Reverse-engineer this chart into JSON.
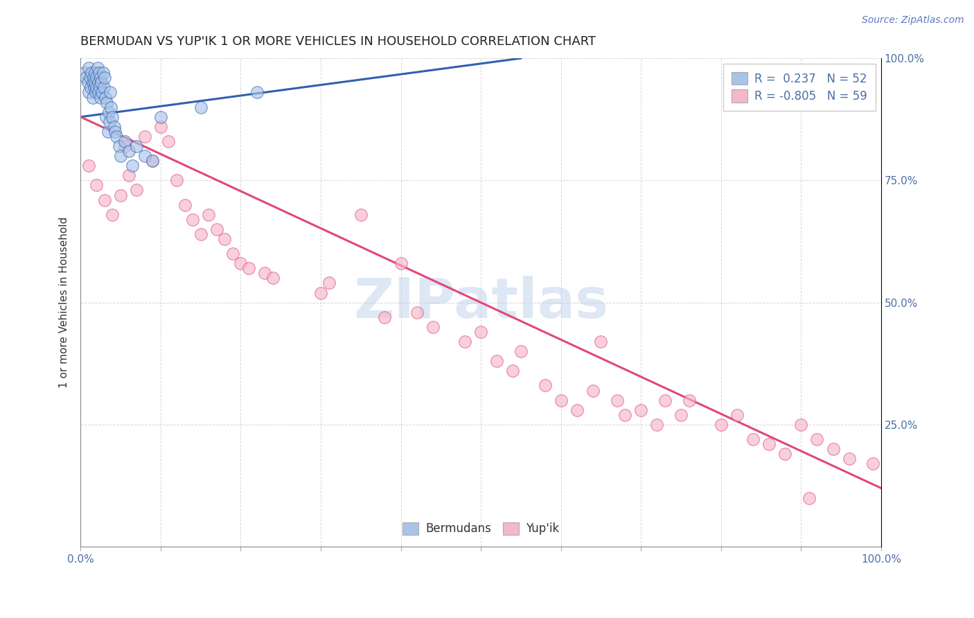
{
  "title": "BERMUDAN VS YUP'IK 1 OR MORE VEHICLES IN HOUSEHOLD CORRELATION CHART",
  "source_text": "Source: ZipAtlas.com",
  "ylabel": "1 or more Vehicles in Household",
  "xlim": [
    0.0,
    1.0
  ],
  "ylim": [
    0.0,
    1.0
  ],
  "blue_R": 0.237,
  "blue_N": 52,
  "pink_R": -0.805,
  "pink_N": 59,
  "blue_color": "#aac4e8",
  "pink_color": "#f5b8c8",
  "blue_line_color": "#3060b0",
  "pink_line_color": "#e04878",
  "legend_blue_label": "R =  0.237   N = 52",
  "legend_pink_label": "R = -0.805   N = 59",
  "blue_scatter_x": [
    0.005,
    0.007,
    0.009,
    0.01,
    0.01,
    0.012,
    0.013,
    0.014,
    0.015,
    0.015,
    0.016,
    0.017,
    0.018,
    0.018,
    0.019,
    0.02,
    0.02,
    0.021,
    0.022,
    0.022,
    0.023,
    0.024,
    0.025,
    0.025,
    0.026,
    0.027,
    0.028,
    0.029,
    0.03,
    0.031,
    0.032,
    0.033,
    0.034,
    0.035,
    0.036,
    0.037,
    0.038,
    0.04,
    0.042,
    0.043,
    0.045,
    0.048,
    0.05,
    0.055,
    0.06,
    0.065,
    0.07,
    0.08,
    0.09,
    0.1,
    0.15,
    0.22
  ],
  "blue_scatter_y": [
    0.97,
    0.96,
    0.95,
    0.93,
    0.98,
    0.96,
    0.94,
    0.97,
    0.95,
    0.92,
    0.96,
    0.94,
    0.97,
    0.95,
    0.93,
    0.96,
    0.94,
    0.98,
    0.95,
    0.93,
    0.97,
    0.94,
    0.96,
    0.92,
    0.95,
    0.93,
    0.97,
    0.94,
    0.96,
    0.92,
    0.88,
    0.91,
    0.85,
    0.89,
    0.87,
    0.93,
    0.9,
    0.88,
    0.86,
    0.85,
    0.84,
    0.82,
    0.8,
    0.83,
    0.81,
    0.78,
    0.82,
    0.8,
    0.79,
    0.88,
    0.9,
    0.93
  ],
  "pink_scatter_x": [
    0.01,
    0.02,
    0.03,
    0.04,
    0.05,
    0.055,
    0.06,
    0.07,
    0.08,
    0.09,
    0.1,
    0.11,
    0.12,
    0.13,
    0.14,
    0.15,
    0.16,
    0.17,
    0.18,
    0.19,
    0.2,
    0.21,
    0.23,
    0.24,
    0.3,
    0.31,
    0.35,
    0.38,
    0.4,
    0.42,
    0.44,
    0.48,
    0.5,
    0.52,
    0.54,
    0.55,
    0.58,
    0.6,
    0.62,
    0.64,
    0.65,
    0.67,
    0.68,
    0.7,
    0.72,
    0.73,
    0.75,
    0.76,
    0.8,
    0.82,
    0.84,
    0.86,
    0.88,
    0.9,
    0.91,
    0.92,
    0.94,
    0.96,
    0.99
  ],
  "pink_scatter_y": [
    0.78,
    0.74,
    0.71,
    0.68,
    0.72,
    0.82,
    0.76,
    0.73,
    0.84,
    0.79,
    0.86,
    0.83,
    0.75,
    0.7,
    0.67,
    0.64,
    0.68,
    0.65,
    0.63,
    0.6,
    0.58,
    0.57,
    0.56,
    0.55,
    0.52,
    0.54,
    0.68,
    0.47,
    0.58,
    0.48,
    0.45,
    0.42,
    0.44,
    0.38,
    0.36,
    0.4,
    0.33,
    0.3,
    0.28,
    0.32,
    0.42,
    0.3,
    0.27,
    0.28,
    0.25,
    0.3,
    0.27,
    0.3,
    0.25,
    0.27,
    0.22,
    0.21,
    0.19,
    0.25,
    0.1,
    0.22,
    0.2,
    0.18,
    0.17
  ],
  "blue_line_x": [
    0.0,
    0.55
  ],
  "blue_line_y": [
    0.88,
    1.0
  ],
  "pink_line_x": [
    0.0,
    1.0
  ],
  "pink_line_y": [
    0.88,
    0.12
  ],
  "background_color": "#ffffff",
  "grid_color": "#cccccc",
  "title_fontsize": 13,
  "axis_label_fontsize": 11,
  "tick_fontsize": 11,
  "legend_fontsize": 12,
  "source_fontsize": 10,
  "watermark_text": "ZIPatlas",
  "watermark_fontsize": 58,
  "watermark_color": "#c8d8ee",
  "watermark_alpha": 0.6,
  "scatter_size": 160,
  "scatter_alpha": 0.65
}
